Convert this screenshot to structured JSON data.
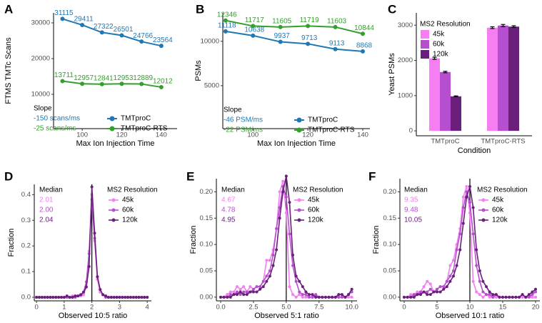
{
  "chart_data": [
    {
      "panel": "A",
      "type": "line",
      "xlabel": "Max Ion Injection Time",
      "ylabel": "FTMS TMTc Scans",
      "x": [
        90,
        100,
        110,
        120,
        130,
        140
      ],
      "xlim": [
        85.5,
        148
      ],
      "xticks": [
        100,
        120,
        140
      ],
      "ylim": [
        400,
        32800
      ],
      "yticks": [
        10000,
        20000,
        30000
      ],
      "show_values": true,
      "annotation_title": "Slope",
      "annotations": [
        "-150 scans/ms",
        "-25 scans/ms"
      ],
      "series": [
        {
          "name": "TMTproC",
          "color": "#1f78b4",
          "values": [
            31115,
            29411,
            27322,
            26501,
            24766,
            23564
          ]
        },
        {
          "name": "TMTproC-RTS",
          "color": "#33a02c",
          "values": [
            13711,
            12957,
            12841,
            12953,
            12889,
            12012
          ]
        }
      ]
    },
    {
      "panel": "B",
      "type": "line",
      "xlabel": "Max Ion Injection Time",
      "ylabel": "PSMs",
      "x": [
        90,
        100,
        110,
        120,
        130,
        140
      ],
      "xlim": [
        89,
        142.6
      ],
      "xticks": [
        100,
        120,
        140
      ],
      "ylim": [
        160,
        13200
      ],
      "yticks": [
        5000,
        10000
      ],
      "show_values": true,
      "annotation_title": "Slope",
      "annotations": [
        "-46 PSM/ms",
        "-22 PSM/ms"
      ],
      "series": [
        {
          "name": "TMTproC",
          "color": "#1f78b4",
          "values": [
            11118,
            10638,
            9937,
            9713,
            9113,
            8868
          ]
        },
        {
          "name": "TMTproC-RTS",
          "color": "#33a02c",
          "values": [
            12346,
            11717,
            11605,
            11719,
            11603,
            10844
          ]
        }
      ]
    },
    {
      "panel": "C",
      "type": "bar",
      "xlabel": "Condition",
      "ylabel": "Yeast PSMs",
      "categories": [
        "TMTproC",
        "TMTproC-RTS"
      ],
      "ylim": [
        -140,
        3350
      ],
      "yticks": [
        0,
        1000,
        2000,
        3000
      ],
      "legend_title": "MS2 Resolution",
      "series": [
        {
          "name": "45k",
          "color": "#f47ef2",
          "values": [
            2060,
            2930
          ],
          "errors": [
            30,
            25
          ]
        },
        {
          "name": "60k",
          "color": "#b64fcf",
          "values": [
            1670,
            2990
          ],
          "errors": [
            20,
            30
          ]
        },
        {
          "name": "120k",
          "color": "#6a1f7c",
          "values": [
            980,
            2960
          ],
          "errors": [
            12,
            25
          ]
        }
      ]
    },
    {
      "panel": "D",
      "type": "line",
      "xlabel": "Observed 10:5 ratio",
      "ylabel": "Fraction",
      "x": [
        0,
        0.1,
        0.2,
        0.3,
        0.4,
        0.5,
        0.6,
        0.7,
        0.8,
        0.9,
        1,
        1.1,
        1.2,
        1.3,
        1.4,
        1.5,
        1.6,
        1.7,
        1.8,
        1.9,
        2,
        2.1,
        2.2,
        2.3,
        2.4,
        2.5,
        2.6,
        2.7,
        2.8,
        2.9,
        3,
        3.1,
        3.2,
        3.3,
        3.4,
        3.5,
        3.6,
        3.7,
        3.8,
        3.9,
        4
      ],
      "xlim": [
        -0.08,
        4.15
      ],
      "xticks": [
        0,
        1,
        2,
        3,
        4
      ],
      "ylim": [
        -0.014,
        0.44
      ],
      "yticks": [
        {
          "value": 0,
          "label": "0.0"
        },
        0.1,
        0.2,
        0.3,
        0.4
      ],
      "vline": 2,
      "legend_title": "MS2 Resolution",
      "annotation_title": "Median",
      "annotations": [
        "2.01",
        "2.00",
        "2.04"
      ],
      "series": [
        {
          "name": "45k",
          "color": "#f47ef2",
          "values": [
            0,
            0,
            0,
            0,
            0,
            0,
            0,
            0,
            0,
            0,
            0,
            0,
            0,
            0.005,
            0.005,
            0.005,
            0.005,
            0.01,
            0.04,
            0.18,
            0.4,
            0.22,
            0.07,
            0.02,
            0.01,
            0.005,
            0,
            0,
            0,
            0,
            0,
            0,
            0,
            0,
            0,
            0,
            0,
            0,
            0,
            0,
            0
          ]
        },
        {
          "name": "60k",
          "color": "#b64fcf",
          "values": [
            0,
            0,
            0,
            0,
            0,
            0,
            0,
            0,
            0,
            0,
            0,
            0,
            0,
            0,
            0,
            0.005,
            0.01,
            0.02,
            0.06,
            0.17,
            0.38,
            0.23,
            0.08,
            0.03,
            0.01,
            0,
            0,
            0,
            0,
            0,
            0,
            0,
            0,
            0,
            0,
            0,
            0,
            0,
            0,
            0,
            0
          ]
        },
        {
          "name": "120k",
          "color": "#6a1f7c",
          "values": [
            0,
            0,
            0,
            0,
            0,
            0,
            0,
            0,
            0,
            0,
            0,
            0.005,
            0,
            0,
            0.005,
            0.005,
            0.01,
            0.02,
            0.04,
            0.12,
            0.43,
            0.25,
            0.08,
            0.03,
            0.01,
            0.005,
            0,
            0,
            0,
            0,
            0,
            0,
            0,
            0,
            0,
            0,
            0,
            0,
            0,
            0,
            0
          ]
        }
      ]
    },
    {
      "panel": "E",
      "type": "line",
      "xlabel": "Observed 5:1 ratio",
      "ylabel": "Fraction",
      "x": [
        0,
        0.25,
        0.5,
        0.75,
        1,
        1.25,
        1.5,
        1.75,
        2,
        2.25,
        2.5,
        2.75,
        3,
        3.25,
        3.5,
        3.75,
        4,
        4.25,
        4.5,
        4.75,
        5,
        5.25,
        5.5,
        5.75,
        6,
        6.25,
        6.5,
        6.75,
        7,
        7.25,
        7.5,
        7.75,
        8,
        8.25,
        8.5,
        8.75,
        9,
        9.25,
        9.5,
        9.75,
        10
      ],
      "xlim": [
        -0.33,
        10.4
      ],
      "xticks": [
        {
          "value": 0,
          "label": "0.0"
        },
        2.5,
        {
          "value": 5,
          "label": "5.0"
        },
        7.5,
        {
          "value": 10,
          "label": "10.0"
        }
      ],
      "ylim": [
        -0.007,
        0.225
      ],
      "yticks": [
        {
          "value": 0,
          "label": "0.00"
        },
        0.05,
        {
          "value": 0.1,
          "label": "0.10"
        },
        0.15,
        {
          "value": 0.2,
          "label": "0.20"
        }
      ],
      "vline": 5,
      "legend_title": "MS2 Resolution",
      "annotation_title": "Median",
      "annotations": [
        "4.67",
        "4.78",
        "4.95"
      ],
      "series": [
        {
          "name": "45k",
          "color": "#f47ef2",
          "values": [
            0,
            0,
            0.005,
            0.01,
            0.01,
            0.02,
            0.015,
            0.02,
            0.01,
            0.02,
            0.015,
            0.02,
            0.02,
            0.03,
            0.07,
            0.07,
            0.09,
            0.13,
            0.2,
            0.22,
            0.16,
            0.02,
            0.005,
            0,
            0.005,
            0,
            0,
            0,
            0,
            0,
            0,
            0,
            0,
            0,
            0,
            0,
            0,
            0,
            0,
            0,
            0
          ]
        },
        {
          "name": "60k",
          "color": "#b64fcf",
          "values": [
            0,
            0,
            0,
            0.005,
            0.005,
            0.01,
            0.005,
            0.01,
            0.01,
            0.01,
            0.015,
            0.02,
            0.02,
            0.03,
            0.04,
            0.05,
            0.08,
            0.13,
            0.17,
            0.21,
            0.19,
            0.12,
            0.06,
            0.03,
            0.01,
            0.005,
            0.005,
            0,
            0,
            0.005,
            0,
            0,
            0,
            0,
            0,
            0,
            0,
            0,
            0,
            0.005,
            0.01
          ]
        },
        {
          "name": "120k",
          "color": "#6a1f7c",
          "values": [
            0,
            0,
            0,
            0,
            0.005,
            0.005,
            0.01,
            0.005,
            0.005,
            0.01,
            0.01,
            0.01,
            0.015,
            0.02,
            0.03,
            0.04,
            0.06,
            0.09,
            0.15,
            0.2,
            0.23,
            0.18,
            0.08,
            0.04,
            0.03,
            0.02,
            0.01,
            0.005,
            0.005,
            0,
            0,
            0,
            0,
            0,
            0,
            0,
            0.005,
            0.005,
            0,
            0.005,
            0.015
          ]
        }
      ]
    },
    {
      "panel": "F",
      "type": "line",
      "xlabel": "Observed 10:1 ratio",
      "ylabel": "Fraction",
      "x": [
        0,
        0.5,
        1,
        1.5,
        2,
        2.5,
        3,
        3.5,
        4,
        4.5,
        5,
        5.5,
        6,
        6.5,
        7,
        7.5,
        8,
        8.5,
        9,
        9.5,
        10,
        10.5,
        11,
        11.5,
        12,
        12.5,
        13,
        13.5,
        14,
        14.5,
        15,
        15.5,
        16,
        16.5,
        17,
        17.5,
        18,
        18.5,
        19,
        19.5,
        20
      ],
      "xlim": [
        -0.65,
        20.65
      ],
      "xticks": [
        0,
        5,
        10,
        15,
        20
      ],
      "ylim": [
        -0.007,
        0.225
      ],
      "yticks": [
        {
          "value": 0,
          "label": "0.00"
        },
        0.05,
        {
          "value": 0.1,
          "label": "0.10"
        },
        0.15,
        {
          "value": 0.2,
          "label": "0.20"
        }
      ],
      "vline": 10,
      "legend_title": "MS2 Resolution",
      "annotation_title": "Median",
      "annotations": [
        "9.35",
        "9.48",
        "10.05"
      ],
      "series": [
        {
          "name": "45k",
          "color": "#f47ef2",
          "values": [
            0,
            0,
            0.005,
            0.005,
            0.01,
            0.01,
            0.02,
            0.03,
            0.025,
            0.01,
            0.015,
            0.02,
            0.02,
            0.03,
            0.06,
            0.07,
            0.1,
            0.13,
            0.19,
            0.21,
            0.16,
            0.03,
            0.01,
            0.005,
            0,
            0.005,
            0,
            0,
            0,
            0,
            0,
            0,
            0,
            0,
            0,
            0,
            0,
            0,
            0,
            0,
            0
          ]
        },
        {
          "name": "60k",
          "color": "#b64fcf",
          "values": [
            0,
            0,
            0,
            0.005,
            0.005,
            0.01,
            0.01,
            0.01,
            0.015,
            0.01,
            0.015,
            0.02,
            0.02,
            0.03,
            0.04,
            0.05,
            0.09,
            0.12,
            0.17,
            0.2,
            0.18,
            0.12,
            0.06,
            0.03,
            0.01,
            0.005,
            0.005,
            0,
            0.005,
            0,
            0,
            0,
            0,
            0,
            0,
            0,
            0.005,
            0,
            0,
            0.005,
            0.01
          ]
        },
        {
          "name": "120k",
          "color": "#6a1f7c",
          "values": [
            0,
            0,
            0,
            0,
            0.005,
            0.005,
            0.01,
            0.005,
            0.005,
            0.01,
            0.01,
            0.01,
            0.015,
            0.02,
            0.03,
            0.04,
            0.06,
            0.09,
            0.14,
            0.19,
            0.21,
            0.17,
            0.09,
            0.05,
            0.03,
            0.02,
            0.01,
            0.005,
            0.005,
            0,
            0,
            0,
            0,
            0,
            0,
            0,
            0.005,
            0,
            0.005,
            0.01,
            0.015
          ]
        }
      ]
    }
  ]
}
